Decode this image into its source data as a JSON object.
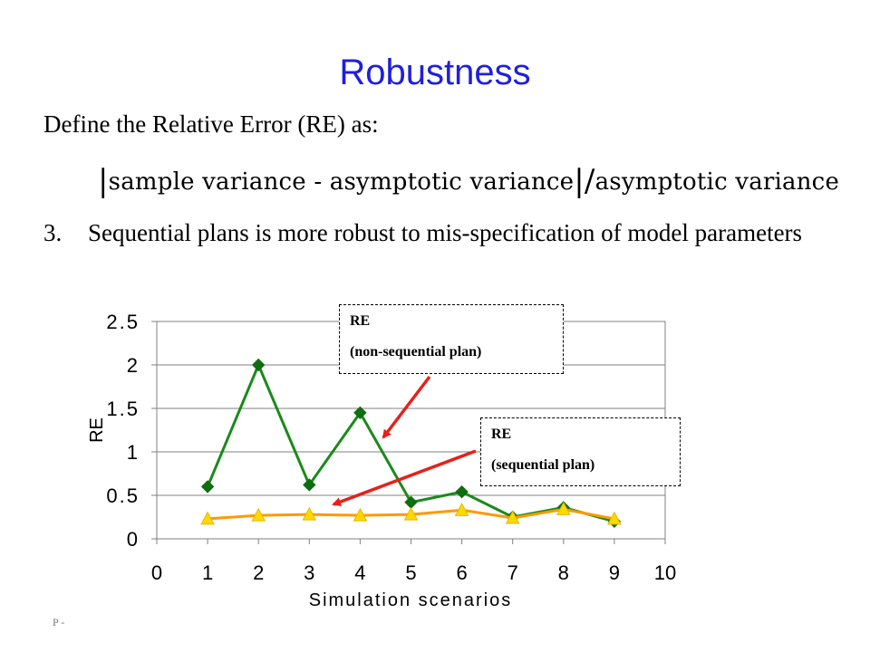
{
  "slide": {
    "title": "Robustness",
    "intro": "Define the Relative Error (RE) as:",
    "formula": {
      "numerator": "sample variance - asymptotic variance",
      "denominator": "asymptotic variance"
    },
    "point_number": "3.",
    "point_text": "Sequential plans is more robust to mis-specification of model parameters",
    "footer": "P -"
  },
  "callouts": [
    {
      "line1": "RE",
      "line2": "(non-sequential plan)"
    },
    {
      "line1": "RE",
      "line2": "(sequential plan)"
    }
  ],
  "colors": {
    "title": "#1f1fdd",
    "non_sequential": "#1a8a1a",
    "non_sequential_marker": "#0f6e0f",
    "sequential": "#ff9900",
    "sequential_marker": "#ffd800",
    "arrow": "#e8201a"
  },
  "chart_data": {
    "type": "line",
    "title": "",
    "xlabel": "Simulation scenarios",
    "ylabel": "RE",
    "xlim": [
      0,
      10
    ],
    "ylim": [
      0,
      2.5
    ],
    "x_ticks": [
      0,
      1,
      2,
      3,
      4,
      5,
      6,
      7,
      8,
      9,
      10
    ],
    "y_ticks": [
      0,
      0.5,
      1,
      1.5,
      2,
      2.5
    ],
    "y_tick_labels": [
      "0",
      "0.5",
      "1",
      "1.5",
      "2",
      "2.5"
    ],
    "grid": "horizontal",
    "x": [
      1,
      2,
      3,
      4,
      5,
      6,
      7,
      8,
      9
    ],
    "series": [
      {
        "key": "non_sequential",
        "marker": "diamond",
        "values": [
          0.6,
          2.0,
          0.62,
          1.45,
          0.42,
          0.54,
          0.25,
          0.36,
          0.2
        ]
      },
      {
        "key": "sequential",
        "marker": "triangle",
        "values": [
          0.23,
          0.27,
          0.28,
          0.27,
          0.28,
          0.33,
          0.24,
          0.34,
          0.23
        ]
      }
    ]
  }
}
